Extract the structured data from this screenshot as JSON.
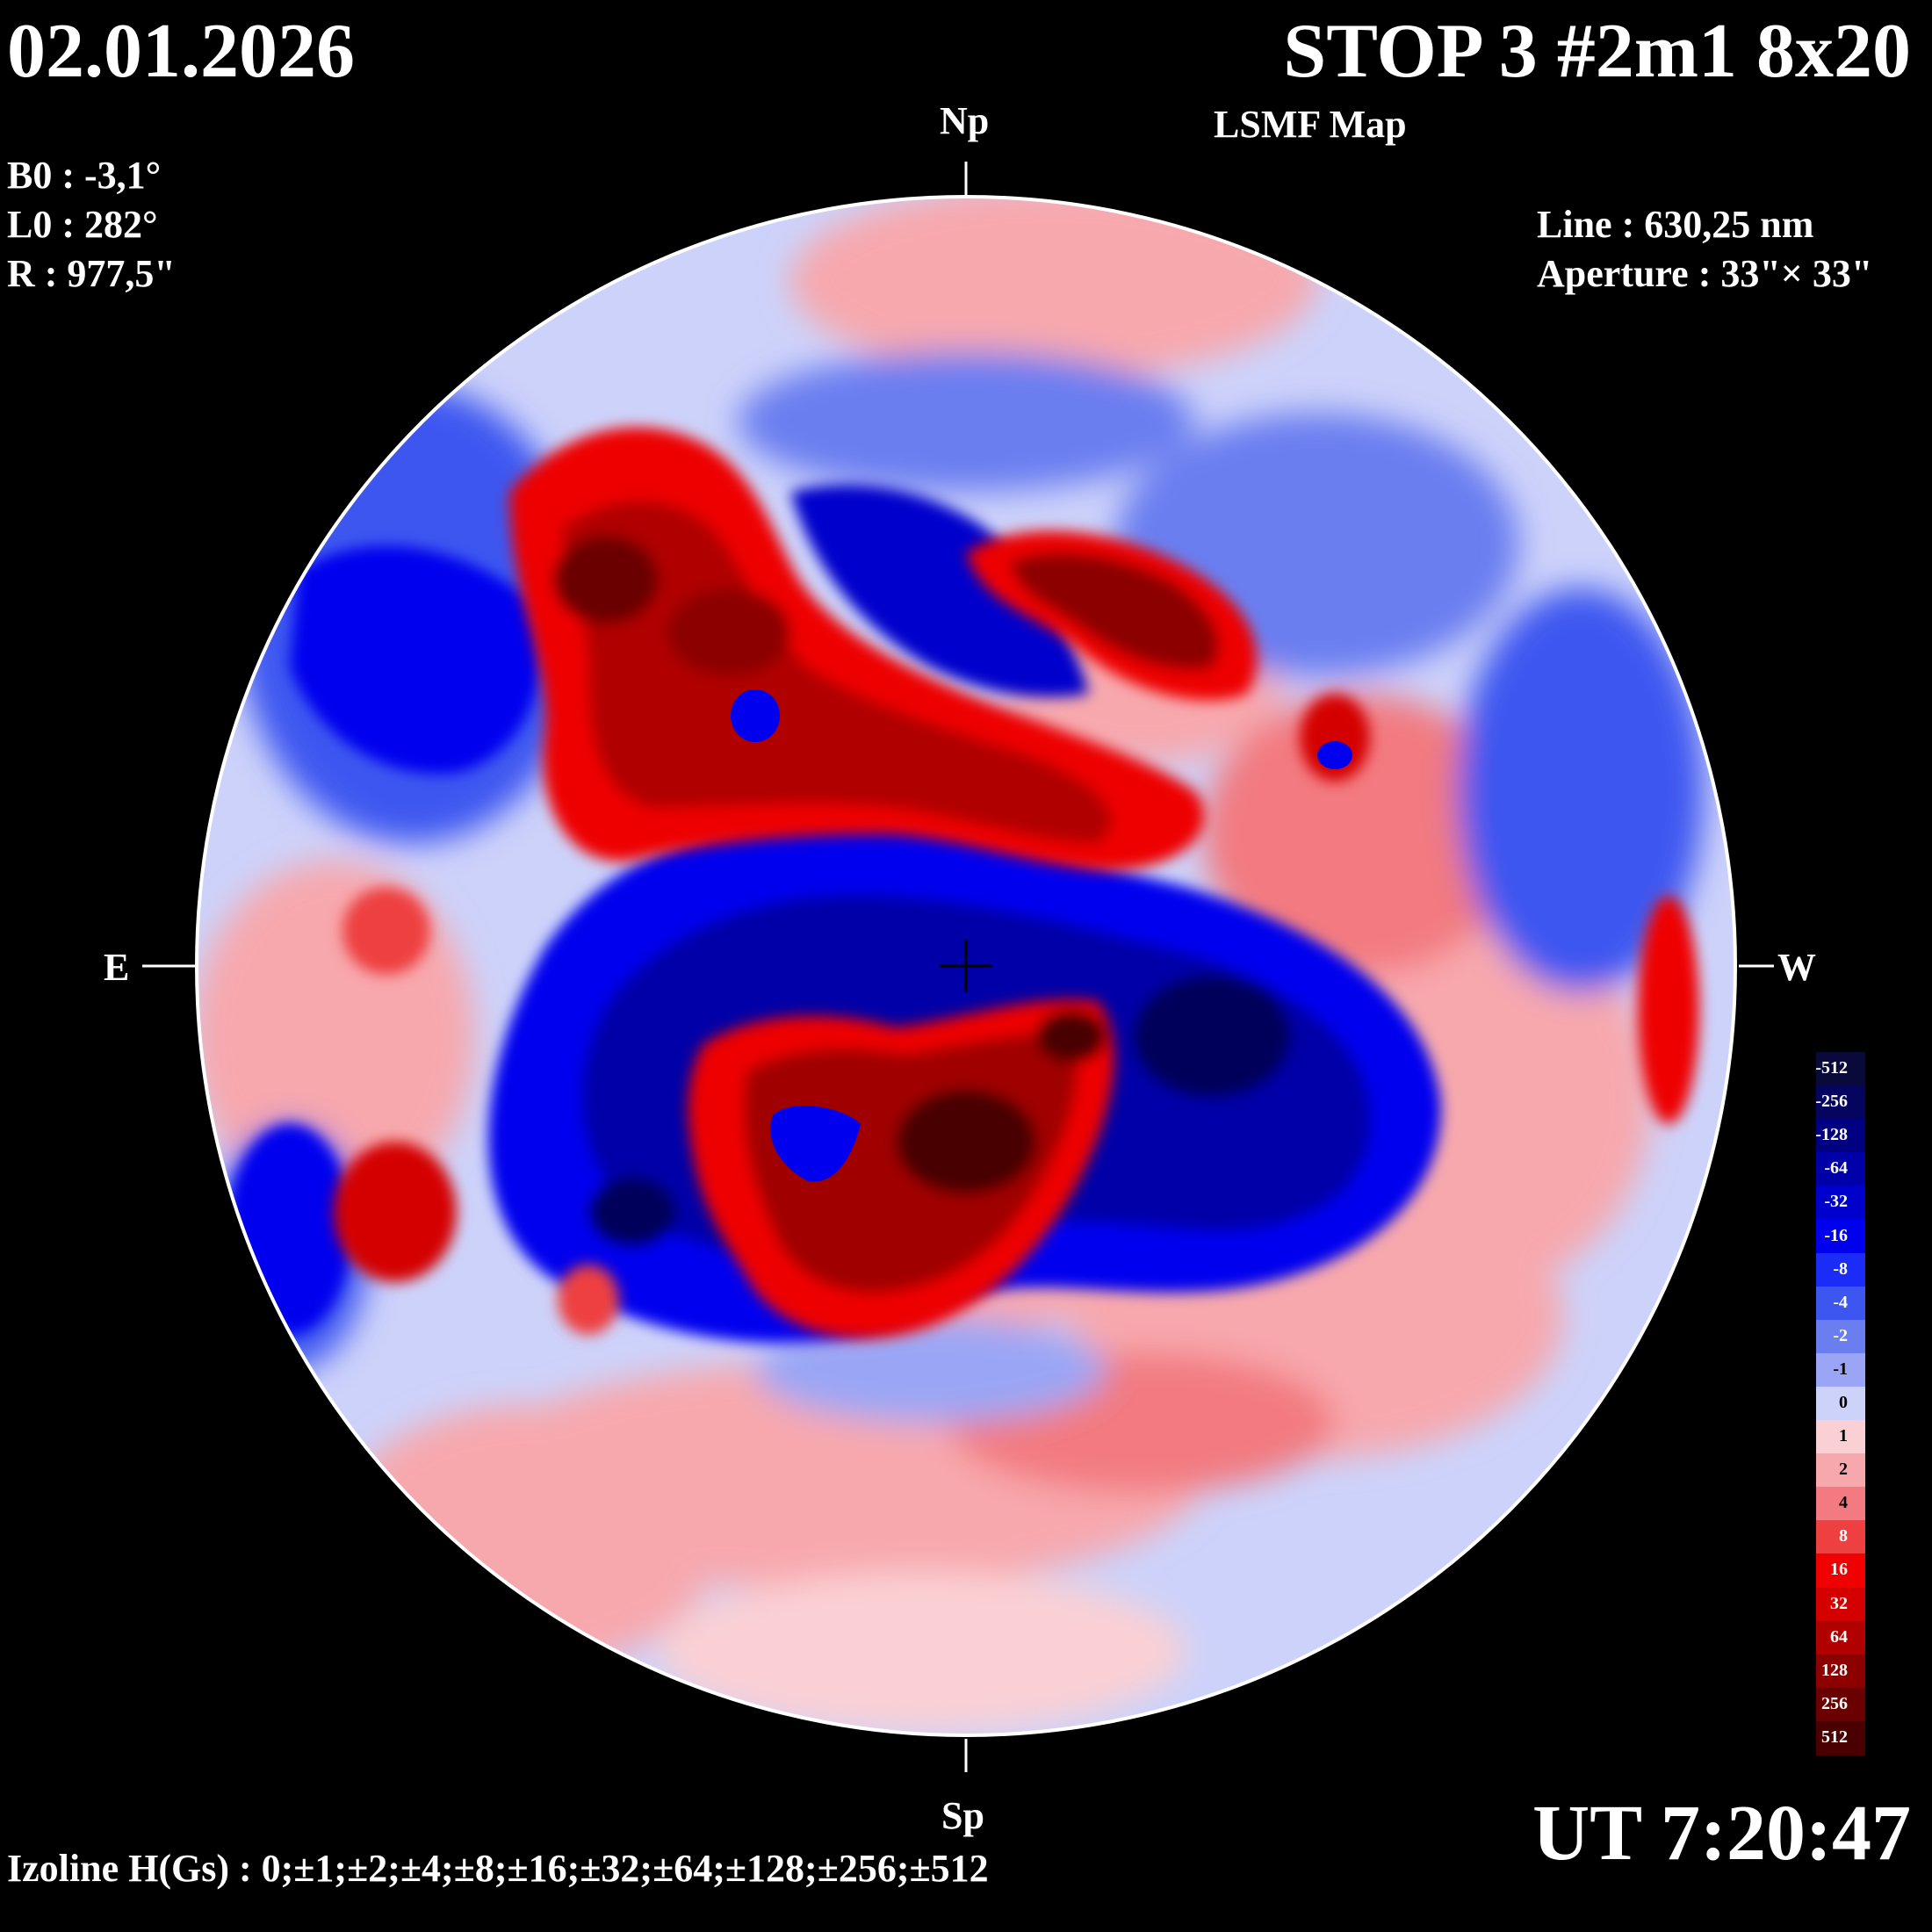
{
  "header": {
    "date": "02.01.2026",
    "title": "STOP 3 #2m1 8x20",
    "subtitle": "LSMF  Map"
  },
  "parameters": {
    "b0": "B0 : -3,1°",
    "l0": "L0 : 282°",
    "radius": "R  : 977,5\"",
    "line": "Line :  630,25 nm",
    "aperture": "Aperture : 33\"× 33\""
  },
  "orientation": {
    "north": "Np",
    "south": "Sp",
    "east": "E",
    "west": "W"
  },
  "time": "UT 7:20:47",
  "izoline": "Izoline H(Gs) : 0;±1;±2;±4;±8;±16;±32;±64;±128;±256;±512",
  "colorscale": {
    "labels": [
      "-512",
      "-256",
      "-128",
      "-64",
      "-32",
      "-16",
      "-8",
      "-4",
      "-2",
      "-1",
      "0",
      "1",
      "2",
      "4",
      "8",
      "16",
      "32",
      "64",
      "128",
      "256",
      "512"
    ],
    "colors": [
      "#0a0a3a",
      "#050560",
      "#000080",
      "#0000a8",
      "#0000cc",
      "#0000ee",
      "#1a2cf5",
      "#3d56f0",
      "#6a7ef0",
      "#9aa6f5",
      "#cdd2fa",
      "#fad0d4",
      "#f7a8ad",
      "#f27a80",
      "#ee4040",
      "#f00000",
      "#d40000",
      "#b00000",
      "#8c0000",
      "#6a0000",
      "#4a0000"
    ]
  },
  "colors": {
    "background": "#000000",
    "text": "#ffffff",
    "disk_border": "#ffffff"
  }
}
